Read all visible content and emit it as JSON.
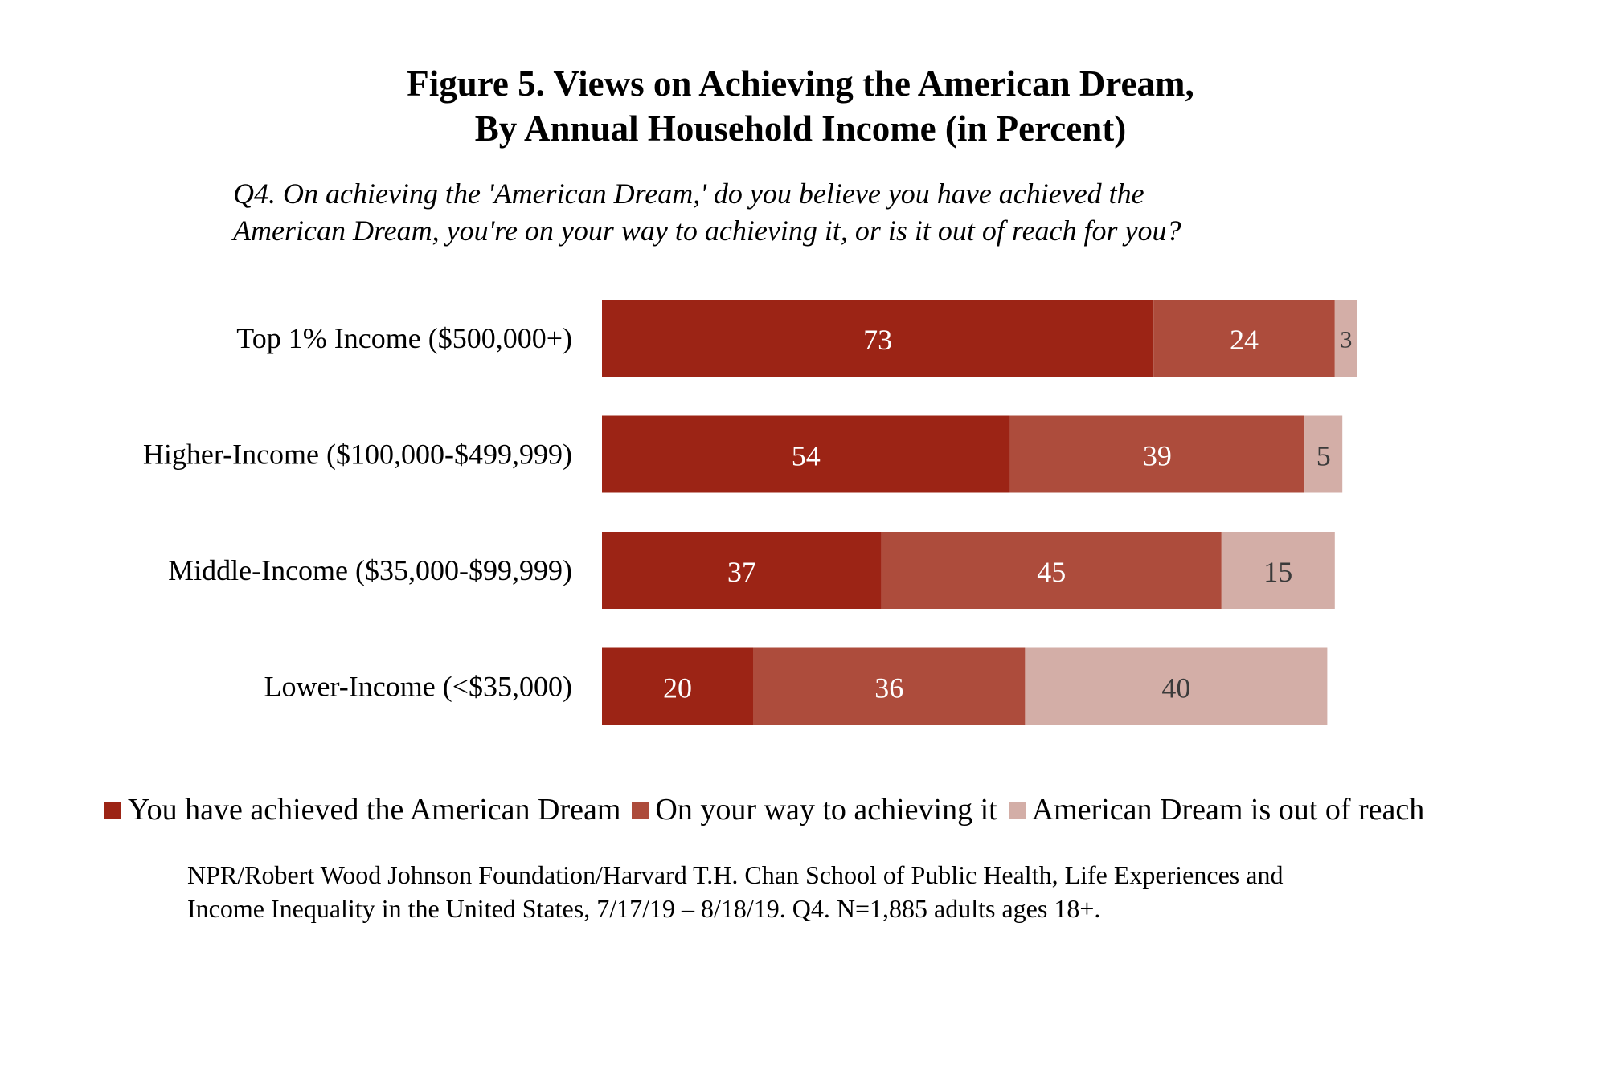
{
  "figure": {
    "title_line1": "Figure 5. Views on Achieving the American Dream,",
    "title_line2": "By Annual Household Income (in Percent)",
    "question_line1": "Q4. On achieving the 'American Dream,' do you believe you have achieved the",
    "question_line2": "American Dream, you're on your way to achieving it, or is it out of reach for you?",
    "source_line1": "NPR/Robert Wood Johnson Foundation/Harvard T.H. Chan School of Public Health, Life Experiences and",
    "source_line2": "Income Inequality in the United States, 7/17/19 – 8/18/19. Q4. N=1,885 adults ages 18+."
  },
  "chart_data": {
    "type": "bar",
    "orientation": "horizontal",
    "stacked": true,
    "title": "Figure 5. Views on Achieving the American Dream, By Annual Household Income (in Percent)",
    "categories": [
      "Top 1% Income ($500,000+)",
      "Higher-Income ($100,000-$499,999)",
      "Middle-Income ($35,000-$99,999)",
      "Lower-Income (<$35,000)"
    ],
    "series": [
      {
        "name": "You have achieved the American Dream",
        "values": [
          73,
          54,
          37,
          20
        ],
        "color": "#9c2415",
        "label_color": "#ffffff"
      },
      {
        "name": "On your way to achieving it",
        "values": [
          24,
          39,
          45,
          36
        ],
        "color": "#ad4c3c",
        "label_color": "#ffffff"
      },
      {
        "name": "American Dream is out of reach",
        "values": [
          3,
          5,
          15,
          40
        ],
        "color": "#d3aea7",
        "label_color": "#3a3a3a"
      }
    ],
    "xlim": [
      0,
      100
    ],
    "grid": false,
    "legend_position": "bottom"
  }
}
